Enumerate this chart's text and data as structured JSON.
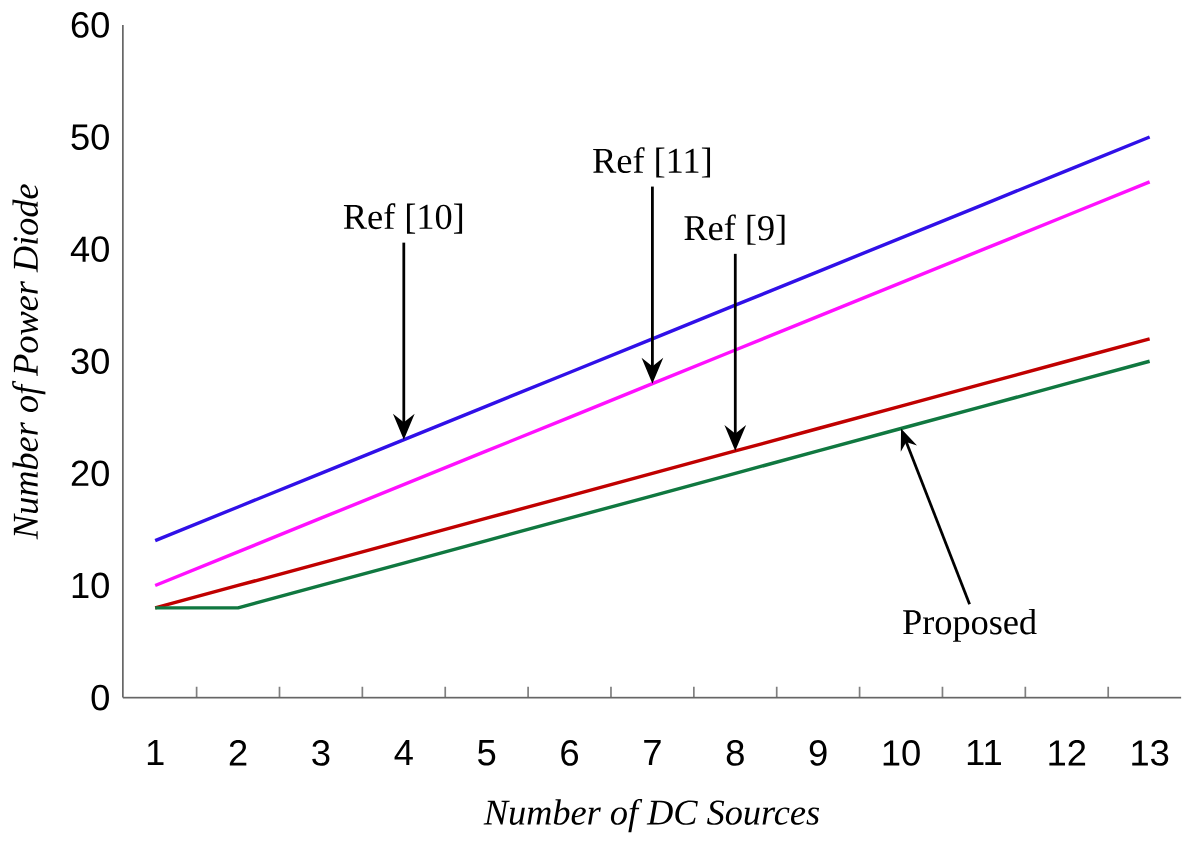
{
  "chart_data": {
    "type": "line",
    "xlabel": "Number of DC Sources",
    "ylabel": "Number of Power Diode",
    "categories": [
      "1",
      "2",
      "3",
      "4",
      "5",
      "6",
      "7",
      "8",
      "9",
      "10",
      "11",
      "12",
      "13"
    ],
    "series": [
      {
        "color": "#3010e8",
        "values": [
          14,
          17,
          20,
          23,
          26,
          29,
          32,
          35,
          38,
          41,
          44,
          47,
          50
        ]
      },
      {
        "color": "#ff10ff",
        "values": [
          10,
          13,
          16,
          19,
          22,
          25,
          28,
          31,
          34,
          37,
          40,
          43,
          46
        ]
      },
      {
        "color": "#c00000",
        "values": [
          8,
          10,
          12,
          14,
          16,
          18,
          20,
          22,
          24,
          26,
          28,
          30,
          32
        ]
      },
      {
        "color": "#107840",
        "values": [
          8,
          8,
          10,
          12,
          14,
          16,
          18,
          20,
          22,
          24,
          26,
          28,
          30
        ]
      }
    ],
    "ylim": [
      0,
      60
    ],
    "yticks": [
      0,
      10,
      20,
      30,
      40,
      50,
      60
    ],
    "marker": "none",
    "annotations": [
      {
        "text": "Ref [10]",
        "x": "4",
        "y": 23
      },
      {
        "text": "Ref [11]",
        "x": "7",
        "y": 28
      },
      {
        "text": "Ref [9]",
        "x": "8",
        "y": 22
      },
      {
        "text": "Proposed",
        "x": "10",
        "y": 24
      }
    ]
  }
}
